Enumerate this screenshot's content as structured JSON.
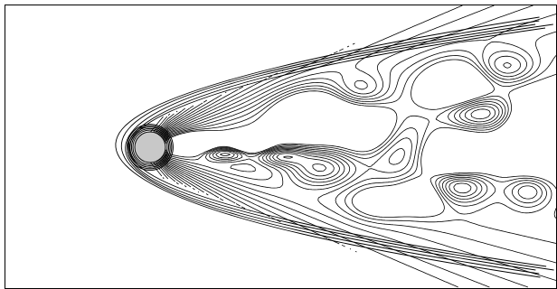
{
  "figure": {
    "kind": "contour-plot",
    "subject": "flow-past-cylinder",
    "colors": {
      "background": "#ffffff",
      "contour": "#000000",
      "frame": "#000000",
      "cylinder_fill": "#c8c8c8",
      "cylinder_edge": "#000000"
    }
  }
}
